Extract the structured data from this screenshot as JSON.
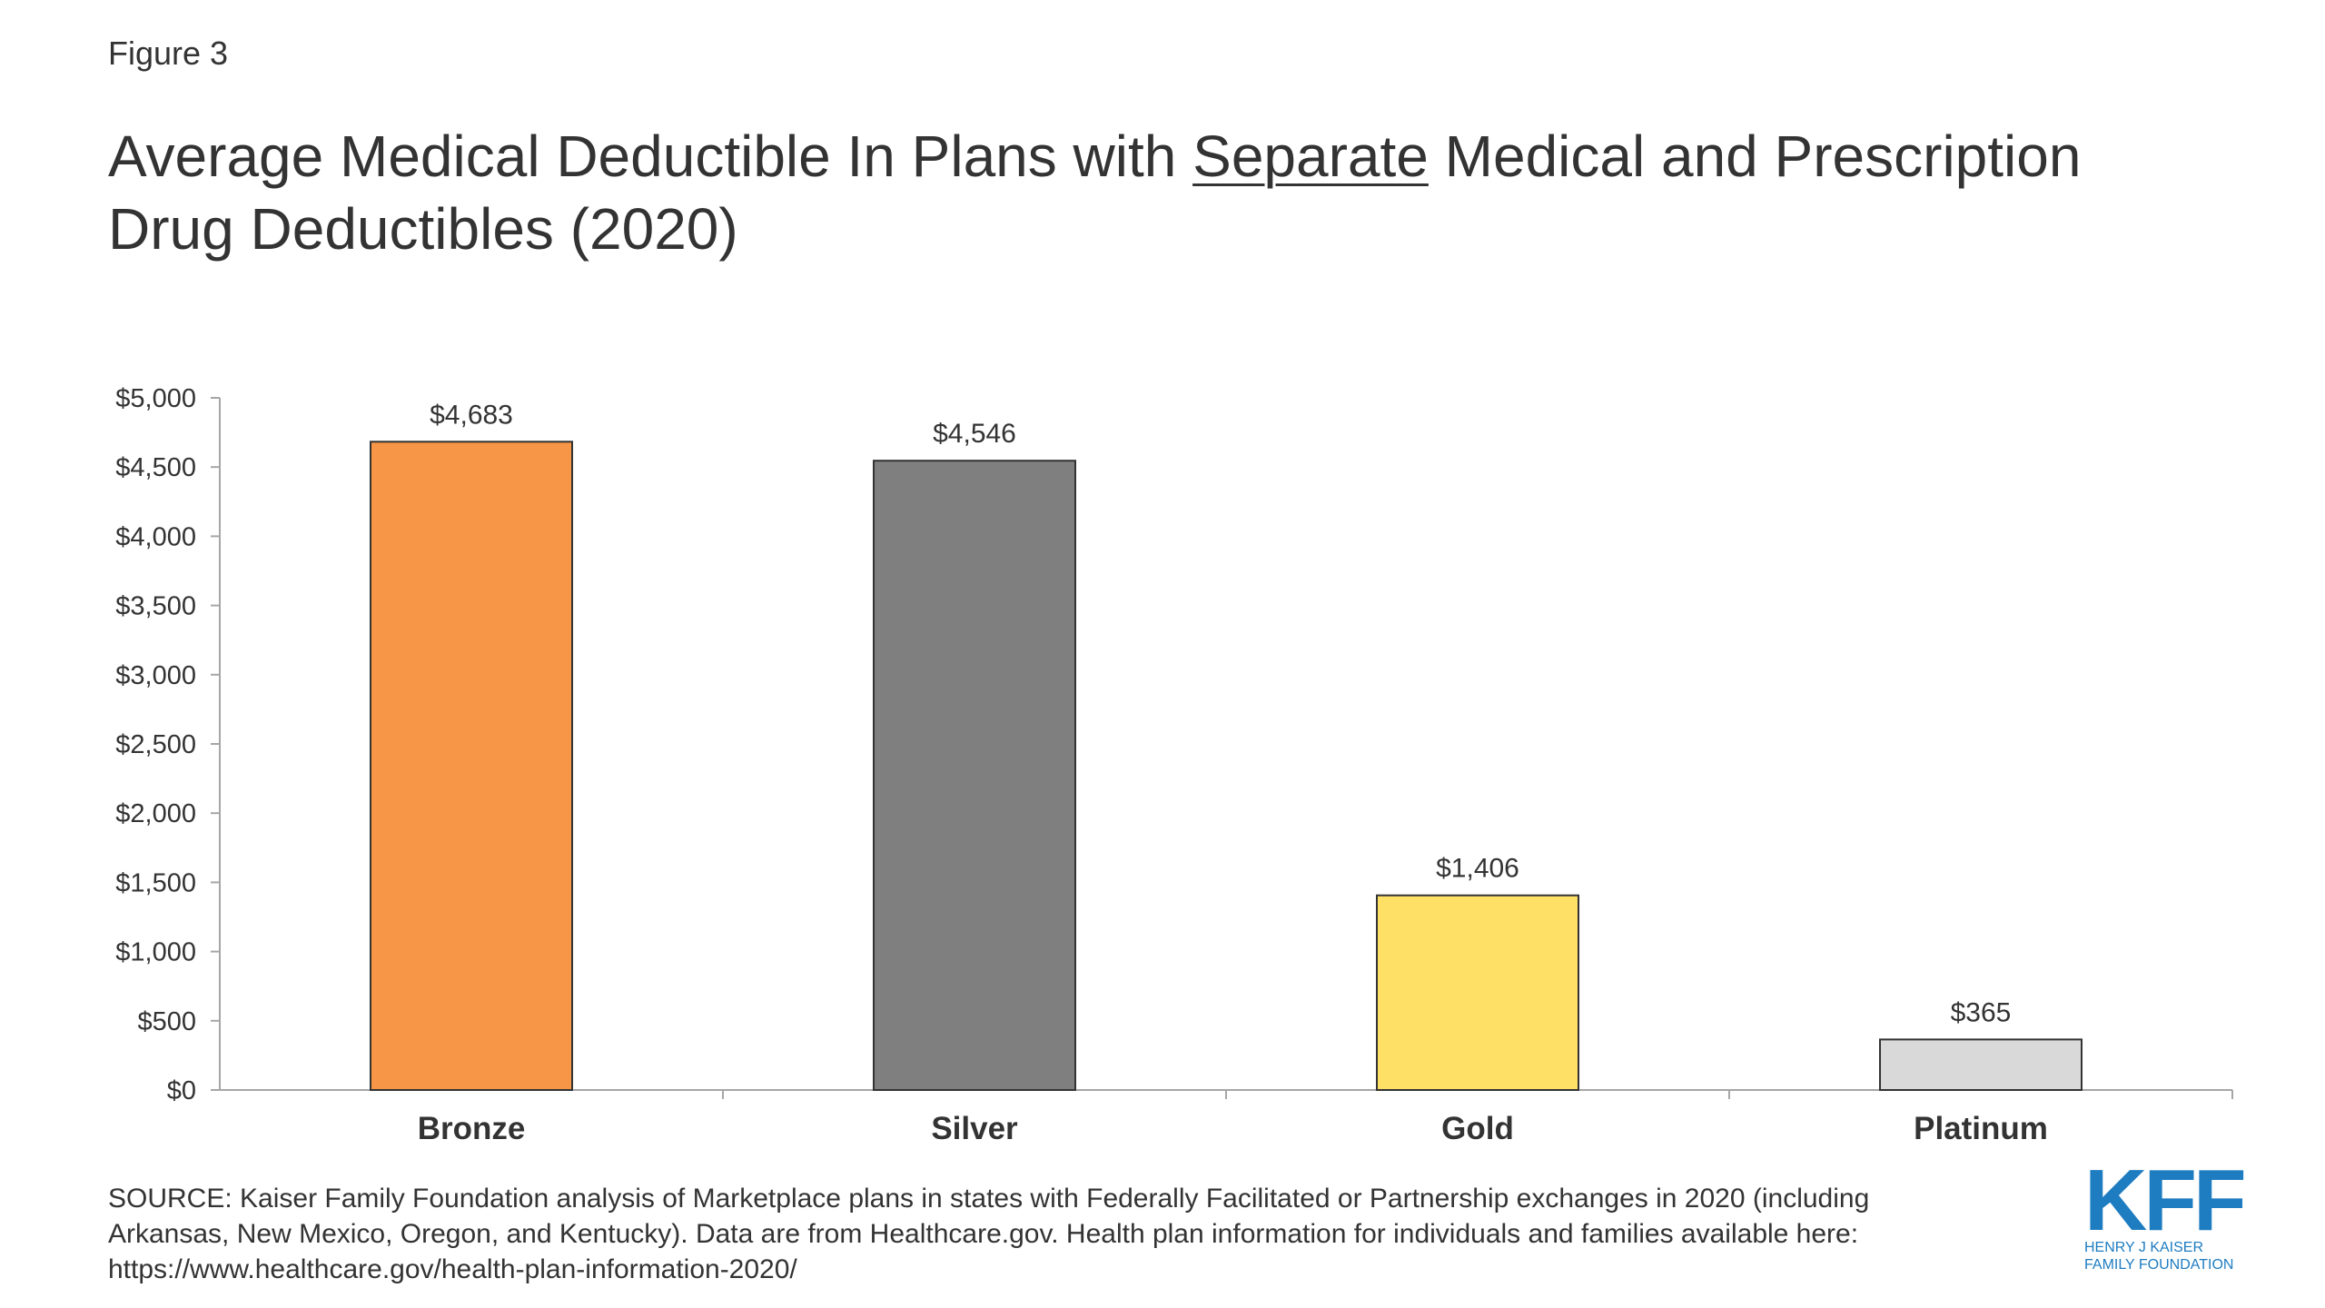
{
  "figure_label": "Figure 3",
  "title": {
    "part1": "Average Medical Deductible In Plans with ",
    "underlined": "Separate",
    "part2": " Medical and Prescription Drug Deductibles (2020)"
  },
  "chart_data": {
    "type": "bar",
    "categories": [
      "Bronze",
      "Silver",
      "Gold",
      "Platinum"
    ],
    "values": [
      4683,
      4546,
      1406,
      365
    ],
    "data_labels": [
      "$4,683",
      "$4,546",
      "$1,406",
      "$365"
    ],
    "colors": [
      "#F79646",
      "#7F7F7F",
      "#FFE066",
      "#D9D9D9"
    ],
    "ylim": [
      0,
      5000
    ],
    "yticks": [
      0,
      500,
      1000,
      1500,
      2000,
      2500,
      3000,
      3500,
      4000,
      4500,
      5000
    ],
    "ytick_labels": [
      "$0",
      "$500",
      "$1,000",
      "$1,500",
      "$2,000",
      "$2,500",
      "$3,000",
      "$3,500",
      "$4,000",
      "$4,500",
      "$5,000"
    ],
    "grid": false,
    "legend": "none",
    "xlabel": "",
    "ylabel": ""
  },
  "source": {
    "line1": "SOURCE: Kaiser Family Foundation analysis of Marketplace plans in states with Federally Facilitated or Partnership exchanges in 2020 (including",
    "line2": "Arkansas, New Mexico, Oregon, and Kentucky). Data are from Healthcare.gov. Health plan information for individuals and families available here:",
    "line3": "https://www.healthcare.gov/health-plan-information-2020/"
  },
  "logo": {
    "mark": "KFF",
    "line1": "HENRY J KAISER",
    "line2": "FAMILY FOUNDATION",
    "color": "#1E7CC1"
  }
}
